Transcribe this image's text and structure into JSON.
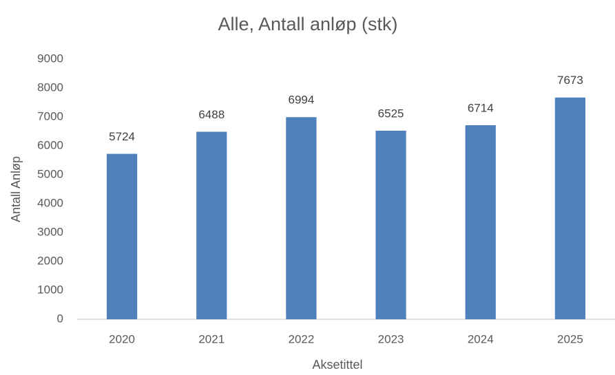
{
  "chart_data": {
    "type": "bar",
    "title": "Alle, Antall anløp (stk)",
    "x_label": "Aksetittel",
    "y_label": "Antall Anløp",
    "categories": [
      "2020",
      "2021",
      "2022",
      "2023",
      "2024",
      "2025"
    ],
    "values": [
      5724,
      6488,
      6994,
      6525,
      6714,
      7673
    ],
    "color": "#4f81bd",
    "ylim": [
      0,
      9000
    ],
    "yticks": [
      0,
      1000,
      2000,
      3000,
      4000,
      5000,
      6000,
      7000,
      8000,
      9000
    ],
    "grid": false
  }
}
